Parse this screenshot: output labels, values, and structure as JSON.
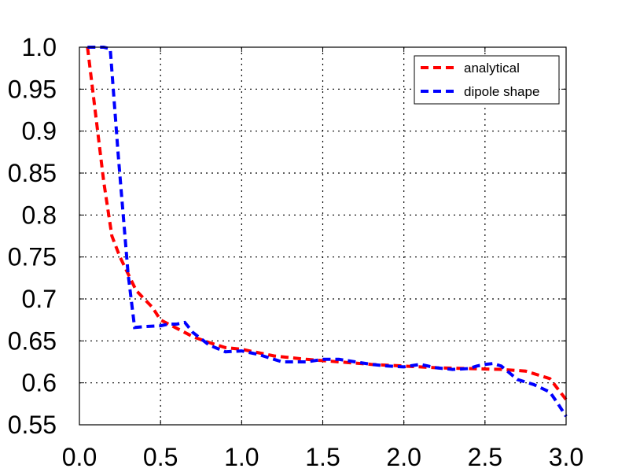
{
  "chart_data": {
    "type": "line",
    "title": "",
    "xlabel": "",
    "ylabel": "",
    "xlim": [
      0.0,
      3.0
    ],
    "ylim": [
      0.55,
      1.0
    ],
    "grid": true,
    "legend_position": "top-right",
    "x_ticks": [
      "0.0",
      "0.5",
      "1.0",
      "1.5",
      "2.0",
      "2.5",
      "3.0"
    ],
    "x_tick_values": [
      0.0,
      0.5,
      1.0,
      1.5,
      2.0,
      2.5,
      3.0
    ],
    "y_ticks": [
      "0.55",
      "0.6",
      "0.65",
      "0.7",
      "0.75",
      "0.8",
      "0.85",
      "0.9",
      "0.95",
      "1.0"
    ],
    "y_tick_values": [
      0.55,
      0.6,
      0.65,
      0.7,
      0.75,
      0.8,
      0.85,
      0.9,
      0.95,
      1.0
    ],
    "series": [
      {
        "name": "analytical",
        "color": "#ff0000",
        "x": [
          0.05,
          0.1,
          0.15,
          0.2,
          0.25,
          0.3,
          0.35,
          0.4,
          0.45,
          0.5,
          0.6,
          0.7,
          0.8,
          0.9,
          1.0,
          1.2,
          1.4,
          1.6,
          1.8,
          2.0,
          2.2,
          2.4,
          2.6,
          2.75,
          2.9,
          3.0
        ],
        "y": [
          1.0,
          0.92,
          0.84,
          0.775,
          0.75,
          0.73,
          0.71,
          0.7,
          0.69,
          0.675,
          0.665,
          0.655,
          0.648,
          0.642,
          0.64,
          0.632,
          0.628,
          0.625,
          0.622,
          0.62,
          0.618,
          0.617,
          0.616,
          0.614,
          0.605,
          0.58
        ]
      },
      {
        "name": "dipole shape",
        "color": "#0000ff",
        "x": [
          0.05,
          0.1,
          0.15,
          0.19,
          0.24,
          0.3,
          0.34,
          0.4,
          0.5,
          0.55,
          0.6,
          0.65,
          0.7,
          0.8,
          0.9,
          1.0,
          1.1,
          1.2,
          1.25,
          1.3,
          1.4,
          1.5,
          1.6,
          1.7,
          1.8,
          1.9,
          2.0,
          2.1,
          2.2,
          2.3,
          2.4,
          2.45,
          2.5,
          2.55,
          2.6,
          2.65,
          2.7,
          2.8,
          2.9,
          2.95,
          3.0
        ],
        "y": [
          1.0,
          1.0,
          1.0,
          0.998,
          0.87,
          0.73,
          0.666,
          0.667,
          0.668,
          0.67,
          0.67,
          0.672,
          0.66,
          0.645,
          0.637,
          0.638,
          0.634,
          0.628,
          0.625,
          0.625,
          0.625,
          0.628,
          0.628,
          0.625,
          0.622,
          0.62,
          0.619,
          0.622,
          0.618,
          0.616,
          0.617,
          0.62,
          0.622,
          0.623,
          0.62,
          0.612,
          0.604,
          0.598,
          0.589,
          0.575,
          0.56
        ]
      }
    ]
  }
}
